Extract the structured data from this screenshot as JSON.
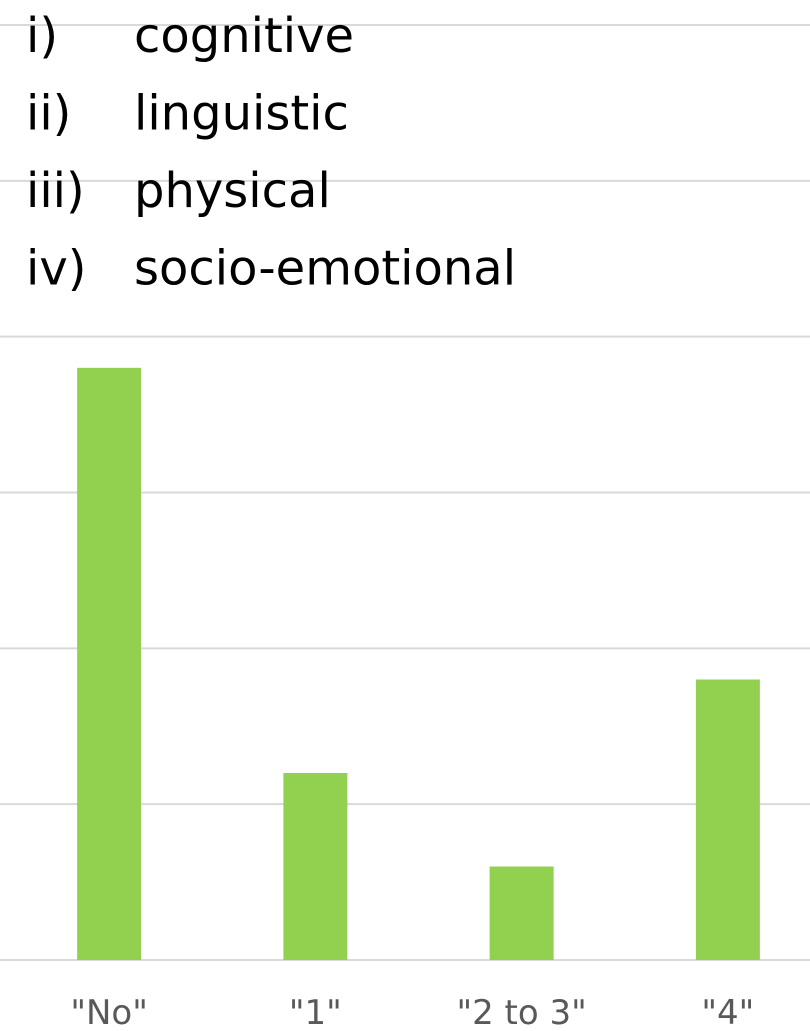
{
  "chart_data": {
    "type": "bar",
    "annotations": [
      {
        "marker": "i)",
        "text": "cognitive"
      },
      {
        "marker": "ii)",
        "text": "linguistic"
      },
      {
        "marker": "iii)",
        "text": "physical"
      },
      {
        "marker": "iv)",
        "text": "socio-emotional"
      }
    ],
    "categories": [
      "\"No\"",
      "\"1\"",
      "\"2 to 3\"",
      "\"4\""
    ],
    "values": [
      3.8,
      1.2,
      0.6,
      1.8
    ],
    "color": "#92d050",
    "ylim": [
      0,
      6
    ],
    "yticks": [
      0,
      1,
      2,
      3,
      4,
      5,
      6
    ],
    "grid": true
  }
}
